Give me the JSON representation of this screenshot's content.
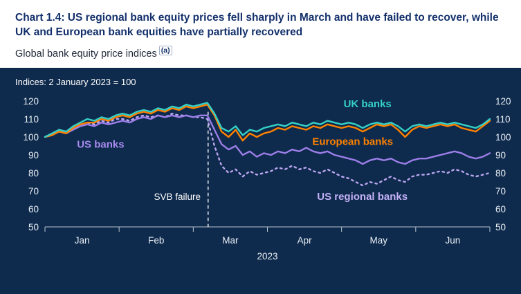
{
  "header": {
    "title": "Chart 1.4: US regional bank equity prices fell sharply in March and have failed to recover, while UK and European bank equities have partially recovered",
    "subtitle": "Global bank equity price indices",
    "footnote_marker": "(a)"
  },
  "chart_data": {
    "type": "line",
    "title": "Global bank equity price indices",
    "note": "Indices: 2 January 2023 = 100",
    "x_axis_label": "2023",
    "x_tick_labels": [
      "Jan",
      "Feb",
      "Mar",
      "Apr",
      "May",
      "Jun"
    ],
    "x_range_months": [
      0,
      6
    ],
    "ylim": [
      50,
      120
    ],
    "y_ticks": [
      50,
      60,
      70,
      80,
      90,
      100,
      110,
      120
    ],
    "grid": false,
    "legend_position": "inline-annotations",
    "event_line": {
      "label": "SVB failure",
      "x_month": 2.2,
      "y_top": 114,
      "color": "#FFFFFF"
    },
    "annotations": [
      {
        "text": "UK banks",
        "color": "#35D0C6",
        "x_month": 4.35,
        "y": 116.5,
        "anchor": "middle",
        "bold": true,
        "size": 15
      },
      {
        "text": "European banks",
        "color": "#FF8200",
        "x_month": 4.15,
        "y": 95.5,
        "anchor": "middle",
        "bold": true,
        "size": 15
      },
      {
        "text": "US banks",
        "color": "#A98BF0",
        "x_month": 0.75,
        "y": 94.0,
        "anchor": "middle",
        "bold": true,
        "size": 15
      },
      {
        "text": "US regional banks",
        "color": "#C2B0F6",
        "x_month": 4.28,
        "y": 65.0,
        "anchor": "middle",
        "bold": true,
        "size": 15
      },
      {
        "text": "SVB failure",
        "color": "#FFFFFF",
        "x_month": 2.1,
        "y": 65.0,
        "anchor": "end",
        "bold": false,
        "size": 13.5
      }
    ],
    "series": [
      {
        "name": "US regional banks",
        "color": "#BBA6F2",
        "style": "dashed",
        "values": [
          100,
          102,
          104,
          103,
          105,
          107,
          108,
          107,
          109,
          108,
          110,
          110,
          109,
          111,
          112,
          111,
          112,
          111,
          113,
          112,
          112,
          111,
          111,
          110,
          95,
          84,
          80,
          82,
          78,
          81,
          79,
          80,
          81,
          83,
          82,
          84,
          82,
          83,
          81,
          80,
          82,
          80,
          78,
          77,
          75,
          73,
          75,
          74,
          76,
          78,
          76,
          75,
          78,
          79,
          79,
          80,
          81,
          80,
          82,
          81,
          79,
          78,
          79,
          80
        ]
      },
      {
        "name": "US banks",
        "color": "#9C7EE8",
        "style": "solid",
        "values": [
          100,
          101,
          103,
          102,
          104,
          106,
          107,
          106,
          108,
          107,
          108,
          109,
          108,
          110,
          111,
          110,
          112,
          111,
          112,
          111,
          112,
          111,
          112,
          112,
          104,
          96,
          93,
          95,
          90,
          92,
          89,
          91,
          90,
          92,
          91,
          93,
          92,
          94,
          92,
          91,
          92,
          90,
          89,
          88,
          87,
          85,
          87,
          88,
          87,
          88,
          86,
          85,
          87,
          88,
          88,
          89,
          90,
          91,
          92,
          91,
          89,
          88,
          89,
          91
        ]
      },
      {
        "name": "European banks",
        "color": "#FF8200",
        "style": "solid",
        "values": [
          100,
          101,
          103,
          102,
          105,
          107,
          108,
          108,
          110,
          109,
          111,
          112,
          111,
          113,
          114,
          113,
          115,
          114,
          116,
          115,
          117,
          116,
          117,
          118,
          112,
          103,
          100,
          104,
          98,
          102,
          100,
          102,
          103,
          105,
          104,
          106,
          105,
          104,
          106,
          105,
          107,
          106,
          105,
          106,
          105,
          103,
          105,
          107,
          106,
          107,
          104,
          100,
          104,
          106,
          105,
          106,
          107,
          106,
          107,
          105,
          104,
          103,
          106,
          109
        ]
      },
      {
        "name": "UK banks",
        "color": "#35D0C6",
        "style": "solid",
        "values": [
          100,
          102,
          104,
          103,
          106,
          108,
          110,
          109,
          111,
          110,
          112,
          113,
          112,
          114,
          115,
          114,
          116,
          115,
          117,
          116,
          118,
          117,
          118,
          119,
          113,
          105,
          103,
          106,
          101,
          104,
          103,
          105,
          106,
          107,
          106,
          108,
          107,
          106,
          108,
          107,
          109,
          108,
          107,
          108,
          107,
          105,
          107,
          108,
          107,
          108,
          106,
          103,
          106,
          107,
          106,
          107,
          108,
          107,
          108,
          107,
          106,
          105,
          107,
          110
        ]
      }
    ]
  }
}
